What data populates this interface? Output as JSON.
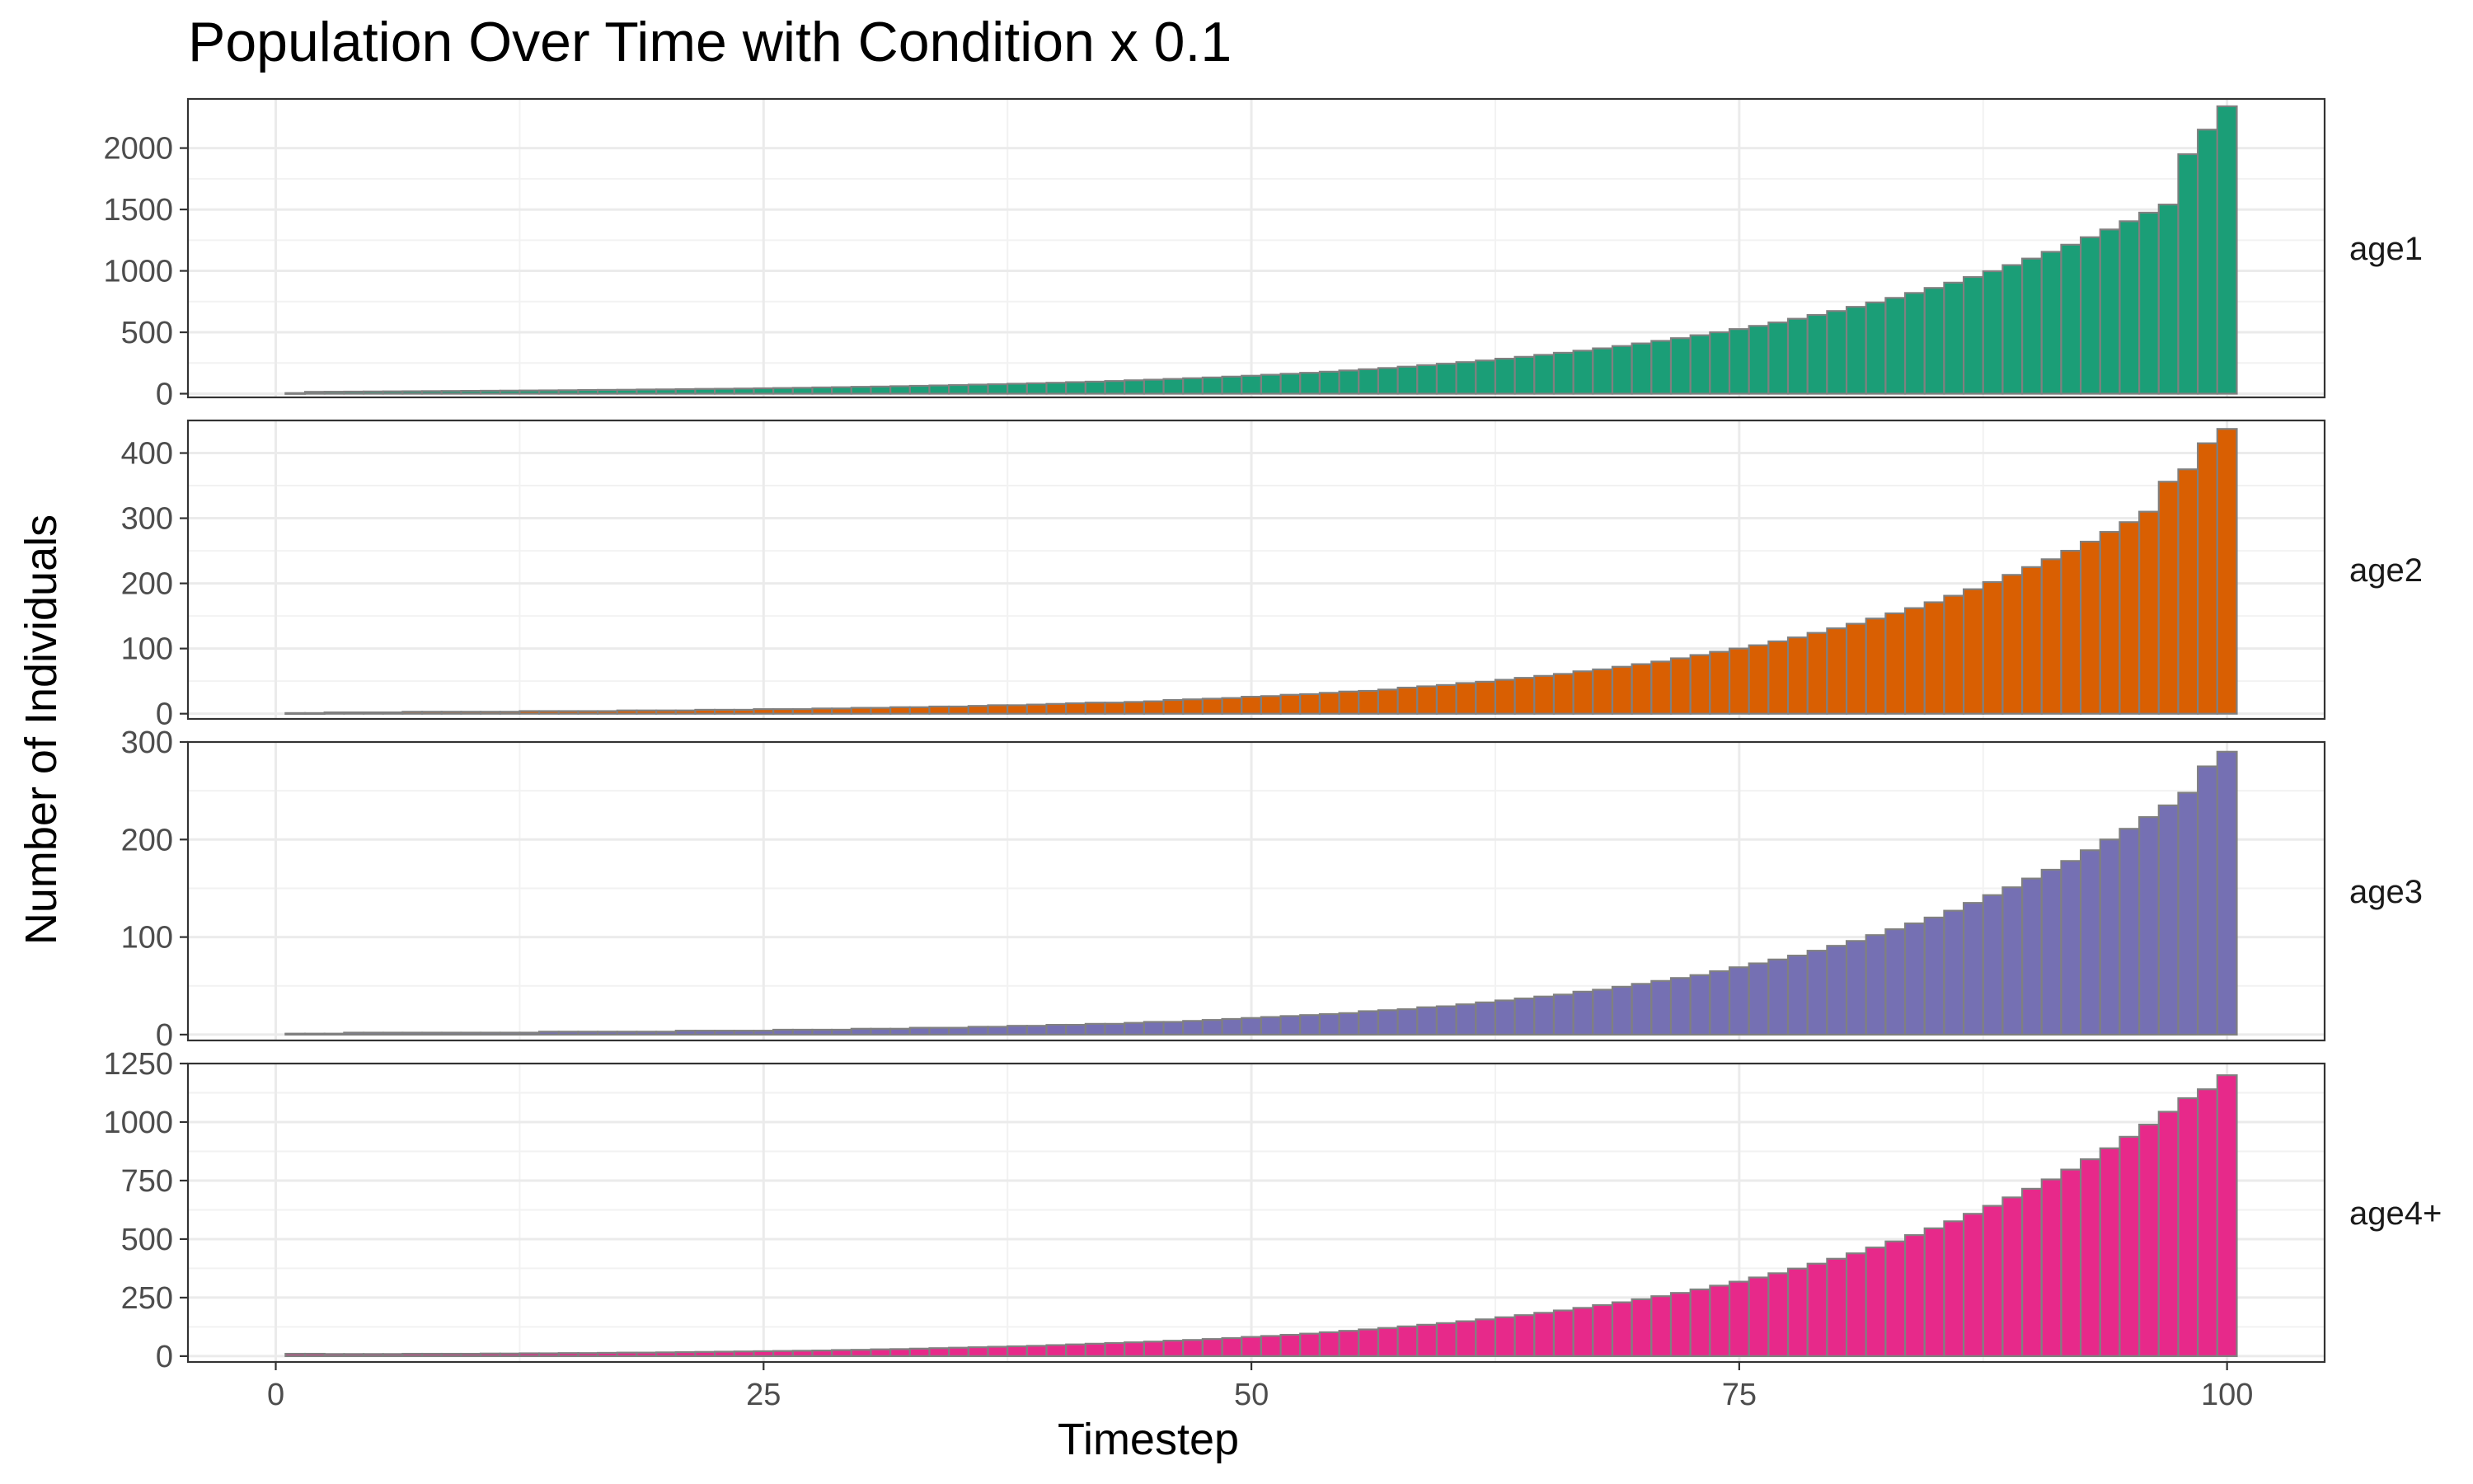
{
  "chart_data": {
    "type": "bar",
    "title": "Population Over Time with Condition x 0.1",
    "xlabel": "Timestep",
    "ylabel": "Number of Individuals",
    "xlim": [
      -4.5,
      105
    ],
    "x_ticks": [
      0,
      25,
      50,
      75,
      100
    ],
    "grid": true,
    "facet_direction": "rows",
    "bar_edge_color": "#808080",
    "x_start": 1,
    "x_end": 100,
    "panels": [
      {
        "name": "age1",
        "color": "#1b9e77",
        "ylim": [
          -30,
          2400
        ],
        "y_ticks": [
          0,
          500,
          1000,
          1500,
          2000
        ],
        "values": [
          5,
          15,
          16,
          17,
          18,
          19,
          20,
          21,
          22,
          23,
          24,
          25,
          26,
          27,
          28,
          30,
          31,
          32,
          34,
          35,
          37,
          39,
          40,
          42,
          44,
          46,
          48,
          51,
          53,
          56,
          58,
          61,
          64,
          67,
          70,
          74,
          77,
          81,
          85,
          89,
          94,
          98,
          103,
          109,
          114,
          120,
          126,
          132,
          139,
          146,
          154,
          162,
          170,
          179,
          189,
          199,
          209,
          220,
          232,
          244,
          257,
          270,
          285,
          300,
          316,
          333,
          350,
          369,
          388,
          409,
          430,
          452,
          476,
          500,
          526,
          552,
          580,
          610,
          641,
          673,
          707,
          743,
          780,
          820,
          861,
          904,
          950,
          997,
          1047,
          1100,
          1155,
          1213,
          1274,
          1337,
          1404,
          1474,
          1540,
          1950,
          2150,
          2340
        ]
      },
      {
        "name": "age2",
        "color": "#d95f02",
        "ylim": [
          -8,
          450
        ],
        "y_ticks": [
          0,
          100,
          200,
          300,
          400
        ],
        "values": [
          1,
          1,
          2,
          2,
          2,
          2,
          3,
          3,
          3,
          3,
          3,
          3,
          4,
          4,
          4,
          4,
          4,
          5,
          5,
          5,
          5,
          6,
          6,
          6,
          7,
          7,
          7,
          8,
          8,
          9,
          9,
          10,
          10,
          11,
          11,
          12,
          13,
          13,
          14,
          15,
          16,
          17,
          17,
          18,
          19,
          21,
          22,
          23,
          24,
          26,
          27,
          29,
          30,
          32,
          34,
          35,
          37,
          40,
          42,
          44,
          47,
          49,
          52,
          55,
          58,
          61,
          65,
          68,
          72,
          76,
          80,
          85,
          90,
          95,
          100,
          105,
          111,
          117,
          124,
          131,
          138,
          146,
          154,
          162,
          171,
          181,
          191,
          202,
          213,
          225,
          237,
          250,
          264,
          279,
          294,
          310,
          356,
          375,
          415,
          437
        ]
      },
      {
        "name": "age3",
        "color": "#7570b3",
        "ylim": [
          -6,
          300
        ],
        "y_ticks": [
          0,
          100,
          200,
          300
        ],
        "values": [
          1,
          1,
          1,
          2,
          2,
          2,
          2,
          2,
          2,
          2,
          2,
          2,
          2,
          3,
          3,
          3,
          3,
          3,
          3,
          3,
          4,
          4,
          4,
          4,
          4,
          5,
          5,
          5,
          5,
          6,
          6,
          6,
          7,
          7,
          7,
          8,
          8,
          9,
          9,
          10,
          10,
          11,
          11,
          12,
          13,
          13,
          14,
          15,
          16,
          17,
          18,
          19,
          20,
          21,
          22,
          24,
          25,
          26,
          28,
          29,
          31,
          33,
          35,
          37,
          39,
          41,
          44,
          46,
          49,
          52,
          55,
          58,
          61,
          65,
          69,
          73,
          77,
          81,
          86,
          91,
          96,
          102,
          108,
          114,
          120,
          127,
          135,
          143,
          151,
          160,
          169,
          178,
          189,
          200,
          211,
          223,
          235,
          248,
          275,
          290
        ]
      },
      {
        "name": "age4+",
        "color": "#e7298a",
        "ylim": [
          -25,
          1250
        ],
        "y_ticks": [
          0,
          250,
          500,
          750,
          1000,
          1250
        ],
        "values": [
          10,
          10,
          9,
          9,
          9,
          9,
          10,
          10,
          10,
          10,
          11,
          11,
          12,
          12,
          13,
          13,
          14,
          15,
          15,
          16,
          17,
          18,
          19,
          20,
          21,
          22,
          23,
          24,
          26,
          27,
          29,
          30,
          32,
          34,
          36,
          38,
          40,
          42,
          44,
          47,
          50,
          53,
          56,
          59,
          62,
          66,
          69,
          73,
          77,
          82,
          86,
          91,
          96,
          102,
          108,
          114,
          120,
          127,
          134,
          141,
          149,
          157,
          166,
          175,
          185,
          195,
          206,
          218,
          230,
          243,
          256,
          270,
          285,
          301,
          318,
          336,
          354,
          374,
          395,
          416,
          439,
          464,
          490,
          517,
          546,
          576,
          608,
          642,
          678,
          715,
          755,
          797,
          841,
          888,
          937,
          989,
          1044,
          1102,
          1140,
          1200
        ]
      }
    ]
  }
}
